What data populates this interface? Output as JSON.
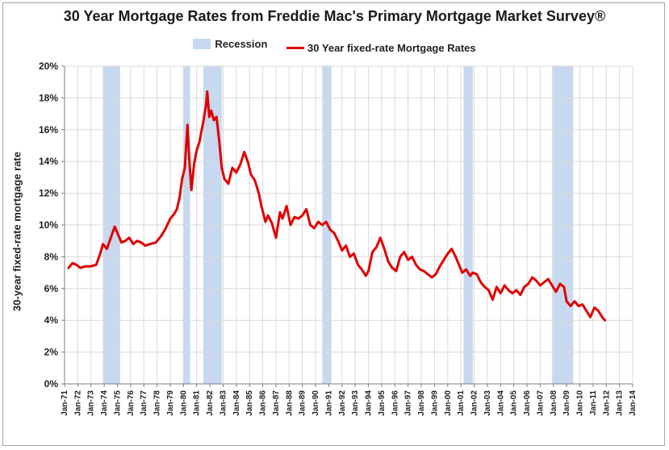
{
  "title": "30 Year Mortgage Rates from Freddie Mac's Primary Mortgage Market Survey®",
  "legend": {
    "recession_label": "Recession",
    "series_label": "30 Year fixed-rate Mortgage Rates"
  },
  "colors": {
    "line": "#e00000",
    "recession": "#c6d9f1",
    "grid": "#d9d9d9",
    "axis": "#7f7f7f"
  },
  "chart_data": {
    "type": "line",
    "title": "30 Year Mortgage Rates from Freddie Mac's Primary Mortgage Market Survey®",
    "xlabel": "",
    "ylabel": "30-year fixed-rate mortgage rate",
    "x_range": [
      1971.0,
      2014.0
    ],
    "ylim": [
      0,
      20
    ],
    "y_ticks": [
      0,
      2,
      4,
      6,
      8,
      10,
      12,
      14,
      16,
      18,
      20
    ],
    "y_tick_labels": [
      "0%",
      "2%",
      "4%",
      "6%",
      "8%",
      "10%",
      "12%",
      "14%",
      "16%",
      "18%",
      "20%"
    ],
    "x_tick_labels": [
      "Jan-71",
      "Jan-72",
      "Jan-73",
      "Jan-74",
      "Jan-75",
      "Jan-76",
      "Jan-77",
      "Jan-78",
      "Jan-79",
      "Jan-80",
      "Jan-81",
      "Jan-82",
      "Jan-83",
      "Jan-84",
      "Jan-85",
      "Jan-86",
      "Jan-87",
      "Jan-88",
      "Jan-89",
      "Jan-90",
      "Jan-91",
      "Jan-92",
      "Jan-93",
      "Jan-94",
      "Jan-95",
      "Jan-96",
      "Jan-97",
      "Jan-98",
      "Jan-99",
      "Jan-00",
      "Jan-01",
      "Jan-02",
      "Jan-03",
      "Jan-04",
      "Jan-05",
      "Jan-06",
      "Jan-07",
      "Jan-08",
      "Jan-09",
      "Jan-10",
      "Jan-11",
      "Jan-12",
      "Jan-13",
      "Jan-14"
    ],
    "grid": true,
    "legend_position": "top",
    "recessions": [
      {
        "start": 1973.9,
        "end": 1975.2
      },
      {
        "start": 1980.0,
        "end": 1980.5
      },
      {
        "start": 1981.5,
        "end": 1982.9
      },
      {
        "start": 1990.5,
        "end": 1991.2
      },
      {
        "start": 2001.2,
        "end": 2001.9
      },
      {
        "start": 2007.9,
        "end": 2009.5
      }
    ],
    "series": [
      {
        "name": "30 Year fixed-rate Mortgage Rates",
        "points": [
          [
            1971.3,
            7.3
          ],
          [
            1971.6,
            7.6
          ],
          [
            1971.9,
            7.5
          ],
          [
            1972.2,
            7.3
          ],
          [
            1972.6,
            7.4
          ],
          [
            1973.0,
            7.4
          ],
          [
            1973.4,
            7.5
          ],
          [
            1973.7,
            8.2
          ],
          [
            1973.9,
            8.8
          ],
          [
            1974.2,
            8.5
          ],
          [
            1974.5,
            9.2
          ],
          [
            1974.8,
            9.9
          ],
          [
            1975.0,
            9.5
          ],
          [
            1975.3,
            8.9
          ],
          [
            1975.6,
            9.0
          ],
          [
            1975.9,
            9.2
          ],
          [
            1976.2,
            8.8
          ],
          [
            1976.5,
            9.0
          ],
          [
            1976.8,
            8.9
          ],
          [
            1977.1,
            8.7
          ],
          [
            1977.5,
            8.8
          ],
          [
            1977.9,
            8.9
          ],
          [
            1978.3,
            9.3
          ],
          [
            1978.6,
            9.7
          ],
          [
            1979.0,
            10.4
          ],
          [
            1979.3,
            10.7
          ],
          [
            1979.5,
            11.0
          ],
          [
            1979.7,
            11.7
          ],
          [
            1979.9,
            12.9
          ],
          [
            1980.1,
            13.6
          ],
          [
            1980.3,
            16.3
          ],
          [
            1980.45,
            14.0
          ],
          [
            1980.6,
            12.2
          ],
          [
            1980.8,
            13.8
          ],
          [
            1981.0,
            14.7
          ],
          [
            1981.2,
            15.2
          ],
          [
            1981.5,
            16.5
          ],
          [
            1981.7,
            17.5
          ],
          [
            1981.8,
            18.4
          ],
          [
            1981.95,
            16.8
          ],
          [
            1982.1,
            17.2
          ],
          [
            1982.3,
            16.6
          ],
          [
            1982.5,
            16.8
          ],
          [
            1982.7,
            15.3
          ],
          [
            1982.9,
            13.6
          ],
          [
            1983.1,
            12.9
          ],
          [
            1983.4,
            12.6
          ],
          [
            1983.7,
            13.6
          ],
          [
            1984.0,
            13.3
          ],
          [
            1984.3,
            13.8
          ],
          [
            1984.6,
            14.6
          ],
          [
            1984.9,
            13.9
          ],
          [
            1985.1,
            13.2
          ],
          [
            1985.4,
            12.8
          ],
          [
            1985.7,
            12.0
          ],
          [
            1985.9,
            11.2
          ],
          [
            1986.2,
            10.2
          ],
          [
            1986.4,
            10.6
          ],
          [
            1986.7,
            10.1
          ],
          [
            1987.0,
            9.2
          ],
          [
            1987.3,
            10.8
          ],
          [
            1987.5,
            10.4
          ],
          [
            1987.8,
            11.2
          ],
          [
            1988.1,
            10.0
          ],
          [
            1988.4,
            10.5
          ],
          [
            1988.7,
            10.4
          ],
          [
            1989.0,
            10.6
          ],
          [
            1989.3,
            11.0
          ],
          [
            1989.6,
            10.0
          ],
          [
            1989.9,
            9.8
          ],
          [
            1990.2,
            10.2
          ],
          [
            1990.5,
            10.0
          ],
          [
            1990.8,
            10.2
          ],
          [
            1991.1,
            9.7
          ],
          [
            1991.4,
            9.5
          ],
          [
            1991.7,
            9.0
          ],
          [
            1992.0,
            8.4
          ],
          [
            1992.3,
            8.7
          ],
          [
            1992.6,
            8.0
          ],
          [
            1992.9,
            8.2
          ],
          [
            1993.2,
            7.5
          ],
          [
            1993.5,
            7.2
          ],
          [
            1993.8,
            6.8
          ],
          [
            1994.0,
            7.1
          ],
          [
            1994.3,
            8.3
          ],
          [
            1994.6,
            8.6
          ],
          [
            1994.9,
            9.2
          ],
          [
            1995.2,
            8.5
          ],
          [
            1995.5,
            7.7
          ],
          [
            1995.8,
            7.3
          ],
          [
            1996.1,
            7.1
          ],
          [
            1996.4,
            8.0
          ],
          [
            1996.7,
            8.3
          ],
          [
            1997.0,
            7.8
          ],
          [
            1997.3,
            8.0
          ],
          [
            1997.6,
            7.5
          ],
          [
            1997.9,
            7.2
          ],
          [
            1998.2,
            7.1
          ],
          [
            1998.5,
            6.9
          ],
          [
            1998.8,
            6.7
          ],
          [
            1999.1,
            6.9
          ],
          [
            1999.4,
            7.4
          ],
          [
            1999.7,
            7.8
          ],
          [
            2000.0,
            8.2
          ],
          [
            2000.3,
            8.5
          ],
          [
            2000.6,
            8.0
          ],
          [
            2000.9,
            7.4
          ],
          [
            2001.1,
            7.0
          ],
          [
            2001.4,
            7.2
          ],
          [
            2001.7,
            6.8
          ],
          [
            2001.9,
            7.0
          ],
          [
            2002.2,
            6.9
          ],
          [
            2002.5,
            6.4
          ],
          [
            2002.8,
            6.1
          ],
          [
            2003.1,
            5.9
          ],
          [
            2003.4,
            5.3
          ],
          [
            2003.7,
            6.1
          ],
          [
            2004.0,
            5.7
          ],
          [
            2004.3,
            6.2
          ],
          [
            2004.6,
            5.9
          ],
          [
            2004.9,
            5.7
          ],
          [
            2005.2,
            5.9
          ],
          [
            2005.5,
            5.6
          ],
          [
            2005.8,
            6.1
          ],
          [
            2006.1,
            6.3
          ],
          [
            2006.4,
            6.7
          ],
          [
            2006.7,
            6.5
          ],
          [
            2007.0,
            6.2
          ],
          [
            2007.3,
            6.4
          ],
          [
            2007.6,
            6.6
          ],
          [
            2007.9,
            6.2
          ],
          [
            2008.2,
            5.8
          ],
          [
            2008.5,
            6.3
          ],
          [
            2008.8,
            6.1
          ],
          [
            2009.0,
            5.2
          ],
          [
            2009.3,
            4.9
          ],
          [
            2009.6,
            5.2
          ],
          [
            2009.9,
            4.9
          ],
          [
            2010.2,
            5.0
          ],
          [
            2010.5,
            4.6
          ],
          [
            2010.8,
            4.2
          ],
          [
            2011.1,
            4.8
          ],
          [
            2011.4,
            4.6
          ],
          [
            2011.7,
            4.2
          ],
          [
            2011.9,
            4.0
          ]
        ]
      }
    ]
  }
}
